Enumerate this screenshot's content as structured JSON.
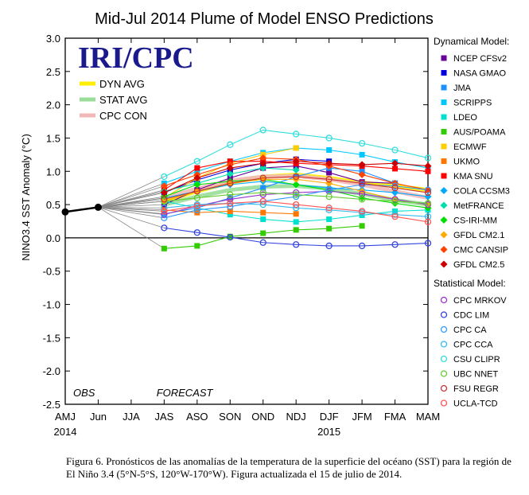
{
  "chart_data": {
    "type": "line",
    "title": "Mid-Jul 2014 Plume of Model ENSO Predictions",
    "ylabel": "NINO3.4 SST Anomaly (°C)",
    "logo": "IRI/CPC",
    "categories": [
      "AMJ",
      "Jun",
      "JJA",
      "JAS",
      "ASO",
      "SON",
      "OND",
      "NDJ",
      "DJF",
      "JFM",
      "FMA",
      "MAM"
    ],
    "year_labels": [
      {
        "label": "2014",
        "category": "AMJ"
      },
      {
        "label": "2015",
        "category": "DJF"
      }
    ],
    "ylim": [
      -2.5,
      3.0
    ],
    "yticks": [
      "3.0",
      "2.5",
      "2.0",
      "1.5",
      "1.0",
      "0.5",
      "0.0",
      "-0.5",
      "-1.0",
      "-1.5",
      "-2.0",
      "-2.5"
    ],
    "obs_label": "OBS",
    "forecast_label": "FORECAST",
    "observed": {
      "x": [
        "AMJ",
        "Jun"
      ],
      "values": [
        0.39,
        0.46
      ]
    },
    "avg_legend": [
      {
        "name": "DYN AVG",
        "color": "#ffee00"
      },
      {
        "name": "STAT AVG",
        "color": "#99dd99"
      },
      {
        "name": "CPC CON",
        "color": "#f2b8b8"
      }
    ],
    "averages": [
      {
        "name": "DYN AVG",
        "color": "#ffee00",
        "values": [
          0.55,
          0.7,
          0.83,
          0.92,
          0.95,
          0.9,
          0.83,
          0.78,
          0.72
        ]
      },
      {
        "name": "STAT AVG",
        "color": "#99dd99",
        "values": [
          0.5,
          0.62,
          0.72,
          0.77,
          0.78,
          0.74,
          0.66,
          0.57,
          0.5
        ]
      },
      {
        "name": "CPC CON",
        "color": "#f2b8b8",
        "values": [
          0.6,
          0.74,
          0.86,
          0.92,
          0.93,
          0.88,
          0.8,
          0.7,
          0.6
        ]
      }
    ],
    "dynamical_header": "Dynamical Model:",
    "statistical_header": "Statistical Model:",
    "dynamical_models": [
      {
        "name": "NCEP CFSv2",
        "color": "#660099",
        "marker": "square",
        "values": [
          0.5,
          0.72,
          0.9,
          1.05,
          1.08,
          0.98,
          0.84,
          0.82,
          null
        ]
      },
      {
        "name": "NASA GMAO",
        "color": "#0000dd",
        "marker": "square",
        "values": [
          0.68,
          0.87,
          1.02,
          1.12,
          1.18,
          1.15,
          null,
          null,
          null
        ]
      },
      {
        "name": "JMA",
        "color": "#1e90ff",
        "marker": "square",
        "values": [
          0.36,
          0.45,
          0.6,
          0.75,
          0.92,
          1.05,
          1.0,
          0.82,
          null
        ]
      },
      {
        "name": "SCRIPPS",
        "color": "#00c8ff",
        "marker": "square",
        "values": [
          0.82,
          1.0,
          1.15,
          1.28,
          1.35,
          1.32,
          1.25,
          1.14,
          1.05
        ]
      },
      {
        "name": "LDEO",
        "color": "#00e0d0",
        "marker": "square",
        "values": [
          0.55,
          0.45,
          0.35,
          0.28,
          0.24,
          0.28,
          0.34,
          0.4,
          0.42
        ]
      },
      {
        "name": "AUS/POAMA",
        "color": "#33cc00",
        "marker": "square",
        "values": [
          -0.16,
          -0.12,
          0.02,
          0.07,
          0.12,
          0.14,
          0.18,
          null,
          null
        ]
      },
      {
        "name": "ECMWF",
        "color": "#ffcc00",
        "marker": "square",
        "values": [
          0.6,
          0.9,
          1.12,
          1.25,
          1.35,
          null,
          null,
          null,
          null
        ]
      },
      {
        "name": "UKMO",
        "color": "#ff7700",
        "marker": "square",
        "values": [
          0.42,
          0.38,
          0.4,
          0.38,
          0.36,
          null,
          null,
          null,
          null
        ]
      },
      {
        "name": "KMA SNU",
        "color": "#ff0000",
        "marker": "square",
        "values": [
          0.72,
          1.05,
          1.15,
          1.15,
          1.12,
          1.1,
          1.08,
          1.04,
          1.0
        ]
      },
      {
        "name": "COLA CCSM3",
        "color": "#00aaff",
        "marker": "diamond",
        "values": [
          0.6,
          0.7,
          0.8,
          0.85,
          0.8,
          0.75,
          0.72,
          0.68,
          0.62
        ]
      },
      {
        "name": "MetFRANCE",
        "color": "#00ddaa",
        "marker": "diamond",
        "values": [
          0.7,
          0.82,
          0.96,
          1.05,
          1.02,
          null,
          null,
          null,
          null
        ]
      },
      {
        "name": "CS-IRI-MM",
        "color": "#00dd00",
        "marker": "diamond",
        "values": [
          0.62,
          0.8,
          0.85,
          0.88,
          0.8,
          0.72,
          0.6,
          0.52,
          0.45
        ]
      },
      {
        "name": "GFDL CM2.1",
        "color": "#ffaa00",
        "marker": "diamond",
        "values": [
          0.55,
          0.7,
          0.82,
          0.88,
          0.88,
          0.82,
          0.7,
          0.58,
          0.5
        ]
      },
      {
        "name": "CMC CANSIP",
        "color": "#ff4400",
        "marker": "diamond",
        "values": [
          0.78,
          0.95,
          1.1,
          1.2,
          1.18,
          1.08,
          0.95,
          0.82,
          0.72
        ]
      },
      {
        "name": "GFDL CM2.5",
        "color": "#cc0000",
        "marker": "diamond",
        "values": [
          0.68,
          0.9,
          1.05,
          1.12,
          1.15,
          1.12,
          1.1,
          1.12,
          1.08
        ]
      }
    ],
    "statistical_models": [
      {
        "name": "CPC MRKOV",
        "color": "#9933cc",
        "marker": "circle",
        "values": [
          0.35,
          0.48,
          0.58,
          0.65,
          0.68,
          0.7,
          0.66,
          0.58,
          0.5
        ]
      },
      {
        "name": "CDC LIM",
        "color": "#3344dd",
        "marker": "circle",
        "values": [
          0.15,
          0.08,
          0.01,
          -0.07,
          -0.1,
          -0.12,
          -0.12,
          -0.1,
          -0.08
        ]
      },
      {
        "name": "CPC CA",
        "color": "#3399ff",
        "marker": "circle",
        "values": [
          0.3,
          0.42,
          0.47,
          0.55,
          0.62,
          0.72,
          0.8,
          0.78,
          0.72
        ]
      },
      {
        "name": "CPC CCA",
        "color": "#33bbee",
        "marker": "circle",
        "values": [
          0.45,
          0.5,
          0.52,
          0.5,
          0.45,
          0.42,
          0.38,
          0.35,
          0.32
        ]
      },
      {
        "name": "CSU CLIPR",
        "color": "#33dddd",
        "marker": "circle",
        "values": [
          0.92,
          1.15,
          1.4,
          1.62,
          1.56,
          1.5,
          1.42,
          1.32,
          1.2
        ]
      },
      {
        "name": "UBC NNET",
        "color": "#66cc33",
        "marker": "circle",
        "values": [
          0.55,
          0.6,
          0.65,
          0.68,
          0.65,
          0.62,
          0.58,
          0.55,
          0.52
        ]
      },
      {
        "name": "FSU REGR",
        "color": "#cc3333",
        "marker": "circle",
        "values": [
          0.58,
          0.7,
          0.82,
          0.9,
          0.92,
          0.88,
          0.82,
          0.75,
          0.68
        ]
      },
      {
        "name": "UCLA-TCD",
        "color": "#ff5555",
        "marker": "circle",
        "values": [
          0.4,
          0.48,
          0.52,
          0.55,
          0.5,
          0.45,
          0.4,
          0.32,
          0.24
        ]
      }
    ]
  },
  "caption": "Figura 6. Pronósticos de las anomalías de la temperatura de la superficie del océano (SST) para la región de El Niño 3.4 (5°N-5°S, 120°W-170°W). Figura actualizada el 15 de julio  de 2014."
}
